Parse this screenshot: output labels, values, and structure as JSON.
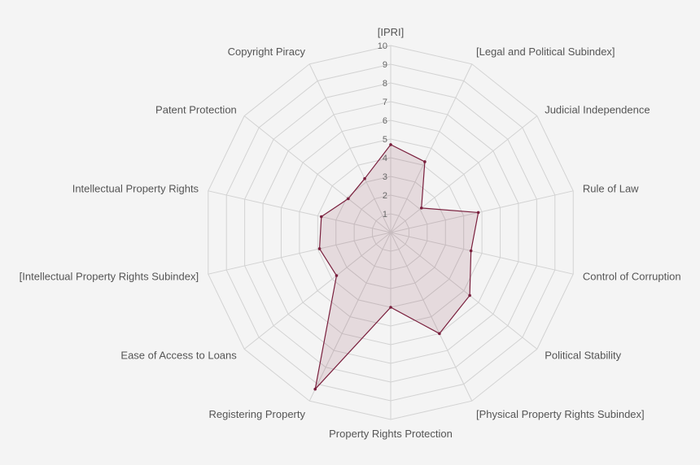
{
  "chart_data": {
    "type": "radar",
    "axes": [
      "[IPRI]",
      "[Legal and Political Subindex]",
      "Judicial Independence",
      "Rule of Law",
      "Control of Corruption",
      "Political Stability",
      "[Physical Property Rights Subindex]",
      "Property Rights Protection",
      "Registering Property",
      "Ease of Access to Loans",
      "[Intellectual Property Rights Subindex]",
      "Intellectual Property Rights",
      "Patent Protection",
      "Copyright Piracy"
    ],
    "ticks": [
      "1",
      "2",
      "3",
      "4",
      "5",
      "6",
      "7",
      "8",
      "9",
      "10"
    ],
    "rmax": 10,
    "grid": true,
    "series": [
      {
        "values": [
          4.7,
          4.2,
          2.1,
          4.8,
          4.4,
          5.4,
          6.0,
          4.0,
          9.3,
          3.7,
          3.9,
          3.8,
          2.9,
          3.2
        ]
      }
    ],
    "colors": {
      "background": "#f4f4f4",
      "grid": "#d2d2d2",
      "line": "#7a1f3d",
      "fill": "rgba(122, 31, 61, 0.12)",
      "text": "#555555"
    }
  }
}
